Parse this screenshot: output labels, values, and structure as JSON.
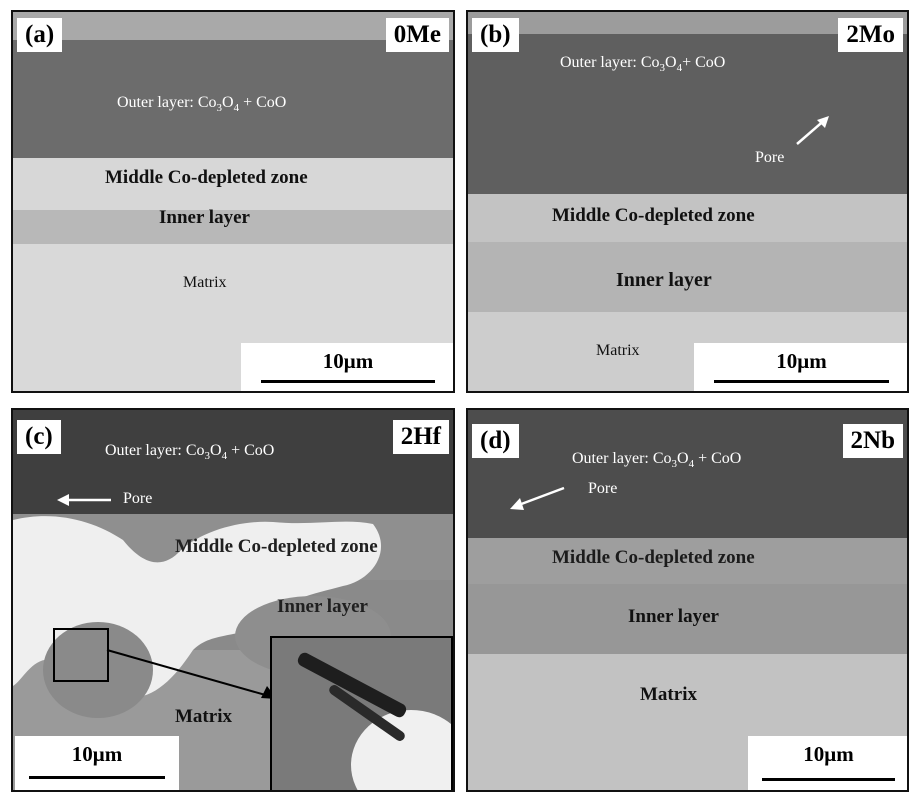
{
  "panels": [
    {
      "id": "a",
      "letter": "(a)",
      "alloy": "0Me",
      "outer_prefix": "Outer layer:  Co",
      "outer_sub1": "3",
      "outer_mid": "O",
      "outer_sub2": "4",
      "outer_suffix": " + CoO",
      "middle": "Middle Co-depleted zone",
      "inner": "Inner layer",
      "matrix": "Matrix",
      "scale": "10μm"
    },
    {
      "id": "b",
      "letter": "(b)",
      "alloy": "2Mo",
      "outer_prefix": "Outer layer:  Co",
      "outer_sub1": "3",
      "outer_mid": "O",
      "outer_sub2": "4",
      "outer_suffix": "+ CoO",
      "pore": "Pore",
      "middle": "Middle Co-depleted zone",
      "inner": "Inner layer",
      "matrix": "Matrix",
      "scale": "10μm"
    },
    {
      "id": "c",
      "letter": "(c)",
      "alloy": "2Hf",
      "outer_prefix": "Outer layer:  Co",
      "outer_sub1": "3",
      "outer_mid": "O",
      "outer_sub2": "4",
      "outer_suffix": " + CoO",
      "pore": "Pore",
      "middle": "Middle Co-depleted zone",
      "inner": "Inner layer",
      "matrix": "Matrix",
      "scale": "10μm"
    },
    {
      "id": "d",
      "letter": "(d)",
      "alloy": "2Nb",
      "outer_prefix": "Outer layer:  Co",
      "outer_sub1": "3",
      "outer_mid": "O",
      "outer_sub2": "4",
      "outer_suffix": " + CoO",
      "pore": "Pore",
      "middle": "Middle Co-depleted zone",
      "inner": "Inner layer",
      "matrix": "Matrix",
      "scale": "10μm"
    }
  ]
}
